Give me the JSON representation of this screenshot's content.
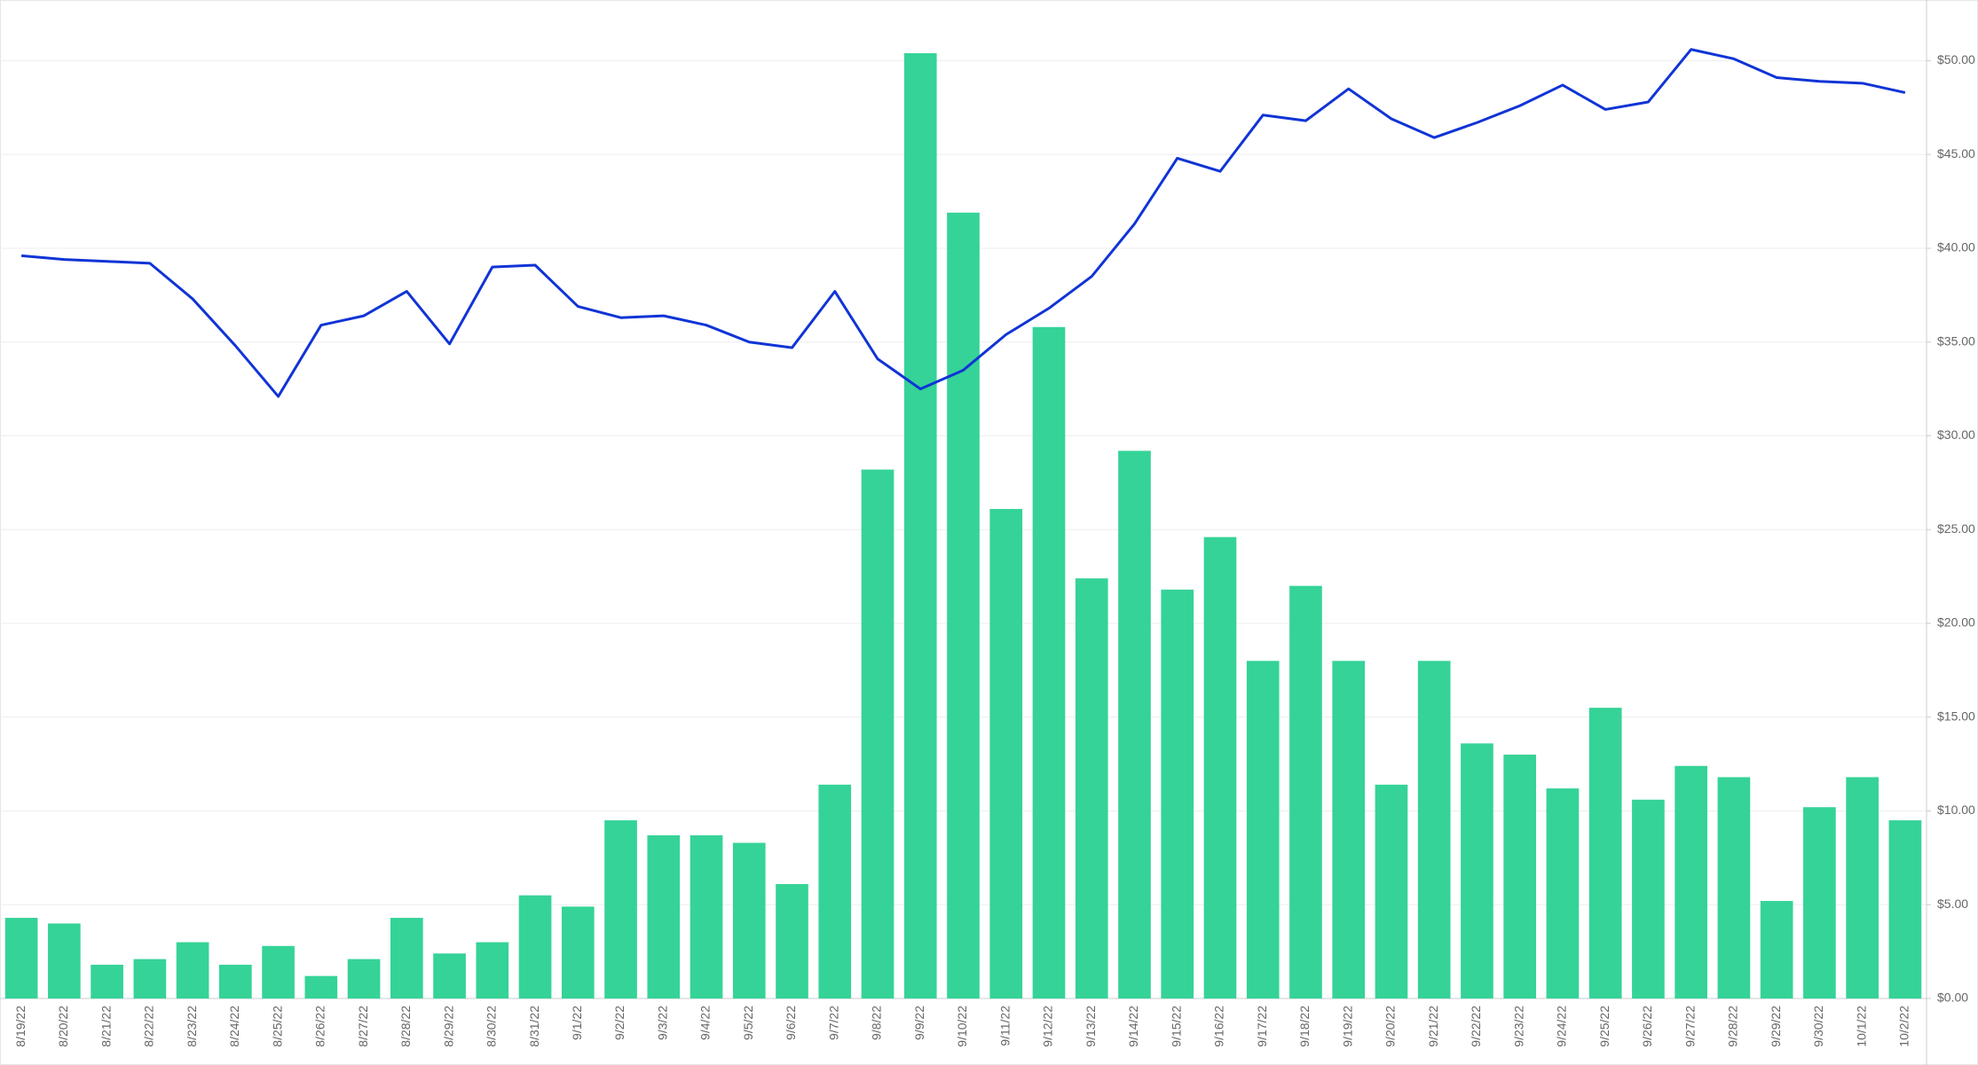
{
  "chart_data": {
    "type": "bar-line",
    "categories": [
      "8/19/22",
      "8/20/22",
      "8/21/22",
      "8/22/22",
      "8/23/22",
      "8/24/22",
      "8/25/22",
      "8/26/22",
      "8/27/22",
      "8/28/22",
      "8/29/22",
      "8/30/22",
      "8/31/22",
      "9/1/22",
      "9/2/22",
      "9/3/22",
      "9/4/22",
      "9/5/22",
      "9/6/22",
      "9/7/22",
      "9/8/22",
      "9/9/22",
      "9/10/22",
      "9/11/22",
      "9/12/22",
      "9/13/22",
      "9/14/22",
      "9/15/22",
      "9/16/22",
      "9/17/22",
      "9/18/22",
      "9/19/22",
      "9/20/22",
      "9/21/22",
      "9/22/22",
      "9/23/22",
      "9/24/22",
      "9/25/22",
      "9/26/22",
      "9/27/22",
      "9/28/22",
      "9/29/22",
      "9/30/22",
      "10/1/22",
      "10/2/22"
    ],
    "series": [
      {
        "type": "bar",
        "color": "#35d397",
        "values": [
          4.3,
          4.0,
          1.8,
          2.1,
          3.0,
          1.8,
          2.8,
          1.2,
          2.1,
          4.3,
          2.4,
          3.0,
          5.5,
          4.9,
          9.5,
          8.7,
          8.7,
          8.3,
          6.1,
          11.4,
          28.2,
          50.4,
          41.9,
          26.1,
          35.8,
          22.4,
          29.2,
          21.8,
          24.6,
          18.0,
          22.0,
          18.0,
          11.4,
          18.0,
          13.6,
          13.0,
          11.2,
          15.5,
          10.6,
          12.4,
          11.8,
          5.2,
          10.2,
          11.8,
          9.5
        ]
      },
      {
        "type": "line",
        "color": "#1034d6",
        "values": [
          39.6,
          39.4,
          39.3,
          39.2,
          37.3,
          34.8,
          32.1,
          35.9,
          36.4,
          37.7,
          34.9,
          39.0,
          39.1,
          36.9,
          36.3,
          36.4,
          35.9,
          35.0,
          34.7,
          37.7,
          34.1,
          32.5,
          33.5,
          35.4,
          36.8,
          38.5,
          41.3,
          44.8,
          44.1,
          47.1,
          46.8,
          48.5,
          46.9,
          45.9,
          46.7,
          47.6,
          48.7,
          47.4,
          47.8,
          50.6,
          50.1,
          49.1,
          48.9,
          48.8,
          48.3
        ]
      }
    ],
    "ylim": [
      0,
      53
    ],
    "yticks": [
      {
        "value": 0,
        "label": "$0.00"
      },
      {
        "value": 5,
        "label": "$5.00"
      },
      {
        "value": 10,
        "label": "$10.00"
      },
      {
        "value": 15,
        "label": "$15.00"
      },
      {
        "value": 20,
        "label": "$20.00"
      },
      {
        "value": 25,
        "label": "$25.00"
      },
      {
        "value": 30,
        "label": "$30.00"
      },
      {
        "value": 35,
        "label": "$35.00"
      },
      {
        "value": 40,
        "label": "$40.00"
      },
      {
        "value": 45,
        "label": "$45.00"
      },
      {
        "value": 50,
        "label": "$50.00"
      }
    ],
    "grid": true
  }
}
